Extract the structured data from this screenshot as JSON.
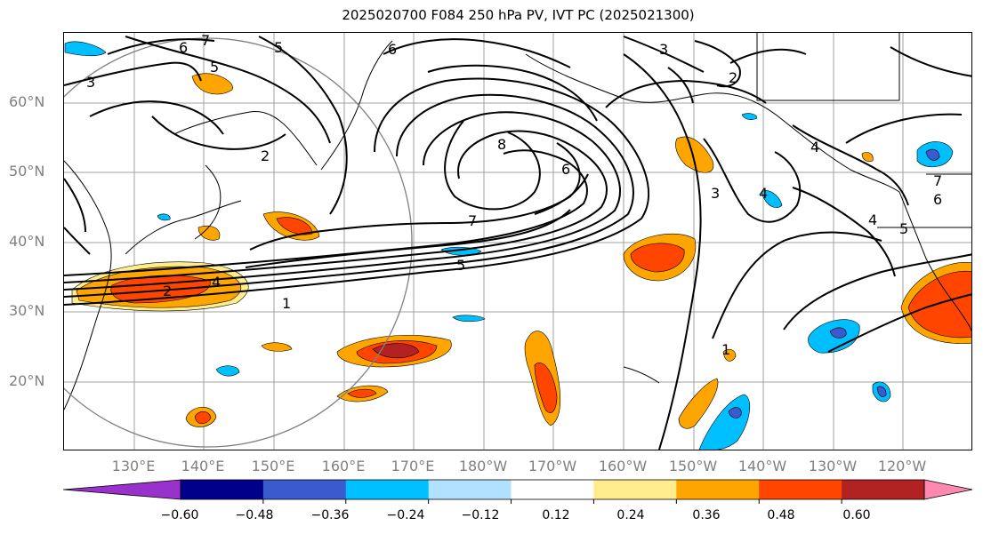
{
  "title": "2025020700 F084 250 hPa PV, IVT PC (2025021300)",
  "lat_labels": [
    "60°N",
    "50°N",
    "40°N",
    "30°N",
    "20°N"
  ],
  "lon_labels": [
    "130°E",
    "140°E",
    "150°E",
    "160°E",
    "170°E",
    "180°W",
    "170°W",
    "160°W",
    "150°W",
    "140°W",
    "130°W",
    "120°W"
  ],
  "colorbar": {
    "colors": [
      "#9932CC",
      "#00008B",
      "#3A5ACD",
      "#00BFFF",
      "#B0E2FF",
      "#FFFFFF",
      "#FFEC8B",
      "#FFA500",
      "#FF4500",
      "#B22222",
      "#FF88B0"
    ],
    "tick_labels": [
      "−0.60",
      "−0.48",
      "−0.36",
      "−0.24",
      "−0.12",
      "0.12",
      "0.24",
      "0.36",
      "0.48",
      "0.60"
    ]
  },
  "contour_labels": [
    "6",
    "7",
    "5",
    "3",
    "6",
    "2",
    "5",
    "3",
    "2",
    "8",
    "6",
    "7",
    "5",
    "3",
    "4",
    "4",
    "7",
    "6",
    "5",
    "4",
    "4",
    "2",
    "1",
    "1"
  ]
}
